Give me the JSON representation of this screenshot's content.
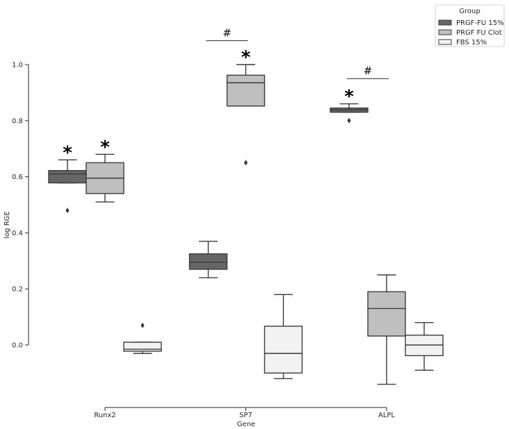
{
  "chart_data": {
    "type": "box",
    "xlabel": "Gene",
    "ylabel": "log RGE",
    "categories": [
      "Runx2",
      "SP7",
      "ALPL"
    ],
    "yticks": [
      0.0,
      0.2,
      0.4,
      0.6,
      0.8,
      1.0
    ],
    "ytick_labels": [
      "0.0",
      "0.2",
      "0.4",
      "0.6",
      "0.8",
      "1.0"
    ],
    "ylim": [
      -0.22,
      1.1
    ],
    "legend": {
      "title": "Group",
      "placement": "top-right",
      "entries": [
        "PRGF-FU 15%",
        "PRGF FU Clot",
        "FBS 15%"
      ]
    },
    "series": [
      {
        "name": "PRGF-FU 15%",
        "color": "#666666",
        "boxes": [
          {
            "category": "Runx2",
            "whisker_low": 0.578,
            "q1": 0.578,
            "median": 0.61,
            "q3": 0.622,
            "whisker_high": 0.66,
            "outliers": [
              0.48
            ]
          },
          {
            "category": "SP7",
            "whisker_low": 0.24,
            "q1": 0.27,
            "median": 0.295,
            "q3": 0.325,
            "whisker_high": 0.37,
            "outliers": []
          },
          {
            "category": "ALPL",
            "whisker_low": 0.83,
            "q1": 0.83,
            "median": 0.838,
            "q3": 0.845,
            "whisker_high": 0.86,
            "outliers": [
              0.8
            ]
          }
        ]
      },
      {
        "name": "PRGF FU Clot",
        "color": "#bfbfbf",
        "boxes": [
          {
            "category": "Runx2",
            "whisker_low": 0.51,
            "q1": 0.54,
            "median": 0.595,
            "q3": 0.65,
            "whisker_high": 0.68,
            "outliers": []
          },
          {
            "category": "SP7",
            "whisker_low": 0.852,
            "q1": 0.852,
            "median": 0.935,
            "q3": 0.962,
            "whisker_high": 1.0,
            "outliers": [
              0.65
            ]
          },
          {
            "category": "ALPL",
            "whisker_low": -0.14,
            "q1": 0.032,
            "median": 0.13,
            "q3": 0.19,
            "whisker_high": 0.25,
            "outliers": []
          }
        ]
      },
      {
        "name": "FBS 15%",
        "color": "#f2f2f2",
        "boxes": [
          {
            "category": "Runx2",
            "whisker_low": -0.03,
            "q1": -0.022,
            "median": -0.015,
            "q3": 0.01,
            "whisker_high": 0.01,
            "outliers": [
              0.07
            ]
          },
          {
            "category": "SP7",
            "whisker_low": -0.12,
            "q1": -0.1,
            "median": -0.03,
            "q3": 0.067,
            "whisker_high": 0.18,
            "outliers": []
          },
          {
            "category": "ALPL",
            "whisker_low": -0.09,
            "q1": -0.038,
            "median": 0.0,
            "q3": 0.035,
            "whisker_high": 0.08,
            "outliers": []
          }
        ]
      }
    ],
    "annotations": [
      {
        "text": "*",
        "category": "Runx2",
        "series": 0,
        "y": 0.66
      },
      {
        "text": "*",
        "category": "Runx2",
        "series": 1,
        "y": 0.68
      },
      {
        "text": "*",
        "category": "SP7",
        "series": 1,
        "y": 1.0
      },
      {
        "text": "*",
        "category": "ALPL",
        "series": 0,
        "y": 0.86
      },
      {
        "text": "#",
        "category": "SP7",
        "bracket_y": 1.085
      },
      {
        "text": "#",
        "category": "ALPL",
        "bracket_y": 0.95
      }
    ]
  }
}
